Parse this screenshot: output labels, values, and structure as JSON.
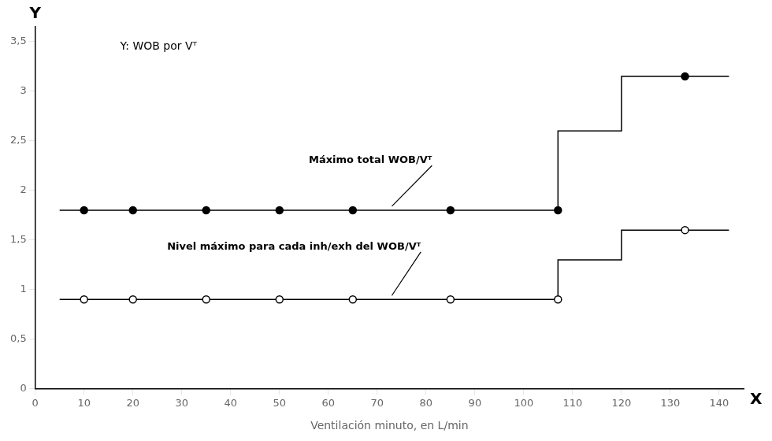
{
  "chart_data": {
    "type": "line",
    "title": "Y: WOB por Vᵀ",
    "xlabel": "Ventilación minuto, en L/min",
    "ylabel": "Y",
    "xlim": [
      0,
      145
    ],
    "ylim": [
      0,
      3.65
    ],
    "xticks": [
      0,
      10,
      20,
      30,
      40,
      50,
      60,
      70,
      80,
      90,
      100,
      110,
      120,
      130,
      140
    ],
    "yticks": [
      0,
      {
        "value": 0.5,
        "label": "0,5"
      },
      1,
      {
        "value": 1.5,
        "label": "1,5"
      },
      2,
      {
        "value": 2.5,
        "label": "2,5"
      },
      3,
      {
        "value": 3.5,
        "label": "3,5"
      }
    ],
    "grid": false,
    "series": [
      {
        "x": [
          5,
          107,
          107,
          120,
          120,
          133,
          133,
          142
        ],
        "values": [
          1.8,
          1.8,
          2.6,
          2.6,
          3.15,
          3.15,
          3.15,
          3.15
        ],
        "color": "black",
        "marker": "none",
        "line_style": "solid"
      },
      {
        "x": [
          5,
          107,
          107,
          120,
          120,
          133,
          133,
          142
        ],
        "values": [
          0.9,
          0.9,
          1.3,
          1.3,
          1.6,
          1.6,
          1.6,
          1.6
        ],
        "color": "black",
        "marker": "none",
        "line_style": "solid"
      },
      {
        "x": [
          10,
          20,
          35,
          50,
          65,
          85,
          107
        ],
        "values": [
          1.8,
          1.8,
          1.8,
          1.8,
          1.8,
          1.8,
          1.8
        ],
        "color": "black",
        "marker": "circle",
        "line_style": "none"
      },
      {
        "x": [
          133
        ],
        "values": [
          3.15
        ],
        "color": "black",
        "marker": "circle",
        "line_style": "none"
      },
      {
        "x": [
          10,
          20,
          35,
          50,
          65,
          85,
          107
        ],
        "values": [
          0.9,
          0.9,
          0.9,
          0.9,
          0.9,
          0.9,
          0.9
        ],
        "color": "black",
        "marker": "open_circle",
        "line_style": "none"
      },
      {
        "x": [
          133
        ],
        "values": [
          1.6
        ],
        "color": "black",
        "marker": "open_circle",
        "line_style": "none"
      }
    ],
    "annotations": [
      {
        "text": "Máximo total WOB/Vᵀ",
        "xy": [
          73,
          1.84
        ],
        "xytext": [
          56,
          2.25
        ]
      },
      {
        "text": "Nivel máximo para cada inh/exh del WOB/Vᵀ",
        "xy": [
          73,
          0.94
        ],
        "xytext": [
          27,
          1.38
        ]
      },
      {
        "text": "X"
      }
    ]
  }
}
